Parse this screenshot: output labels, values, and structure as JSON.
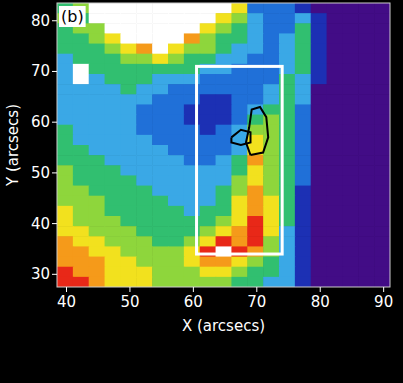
{
  "chart_data": {
    "type": "heatmap",
    "panel_label": "(b)",
    "xlabel": "X (arcsecs)",
    "ylabel": "Y (arcsecs)",
    "xlim": [
      38.5,
      91
    ],
    "ylim": [
      27.5,
      83.5
    ],
    "xticks": [
      40,
      50,
      60,
      70,
      80,
      90
    ],
    "yticks": [
      30,
      40,
      50,
      60,
      70,
      80
    ],
    "x_edges": [
      38.5,
      41,
      43.5,
      46,
      48.5,
      51,
      53.5,
      56,
      58.5,
      61,
      63.5,
      66,
      68.5,
      71,
      73.5,
      76,
      78.5,
      81,
      83.5,
      86,
      88.5,
      91
    ],
    "y_edges": [
      83.5,
      81.5,
      79.5,
      77.5,
      75.5,
      73.5,
      71.5,
      69.5,
      67.5,
      65.5,
      63.5,
      61.5,
      59.5,
      57.5,
      55.5,
      53.5,
      51.5,
      49.5,
      47.5,
      45.5,
      43.5,
      41.5,
      39.5,
      37.5,
      35.5,
      33.5,
      31.5,
      29.5,
      27.5
    ],
    "zlim": [
      0,
      9
    ],
    "cells": [
      [
        4,
        5,
        9,
        9,
        9,
        9,
        9,
        9,
        9,
        9,
        9,
        6,
        2,
        2,
        2,
        1,
        0,
        0,
        0,
        0,
        0
      ],
      [
        5,
        4,
        9,
        9,
        9,
        9,
        9,
        9,
        9,
        9,
        6,
        5,
        3,
        2,
        2,
        3,
        1,
        0,
        0,
        0,
        0
      ],
      [
        4,
        5,
        5,
        9,
        9,
        9,
        9,
        9,
        9,
        6,
        5,
        4,
        3,
        2,
        2,
        4,
        1,
        0,
        0,
        0,
        0
      ],
      [
        4,
        4,
        5,
        6,
        9,
        9,
        9,
        9,
        7,
        5,
        4,
        4,
        3,
        2,
        3,
        4,
        1,
        0,
        0,
        0,
        0
      ],
      [
        4,
        4,
        4,
        5,
        6,
        7,
        9,
        6,
        5,
        5,
        4,
        3,
        3,
        2,
        3,
        4,
        1,
        0,
        0,
        0,
        0
      ],
      [
        3,
        4,
        4,
        4,
        5,
        5,
        6,
        5,
        4,
        4,
        3,
        3,
        2,
        2,
        3,
        4,
        1,
        0,
        0,
        0,
        0
      ],
      [
        3,
        9,
        4,
        4,
        4,
        4,
        4,
        4,
        4,
        3,
        3,
        2,
        2,
        2,
        3,
        4,
        1,
        0,
        0,
        0,
        0
      ],
      [
        3,
        9,
        3,
        4,
        4,
        4,
        3,
        3,
        3,
        2,
        2,
        2,
        2,
        2,
        4,
        3,
        1,
        0,
        0,
        0,
        0
      ],
      [
        3,
        3,
        3,
        3,
        4,
        3,
        3,
        2,
        2,
        2,
        2,
        2,
        2,
        3,
        4,
        3,
        0,
        0,
        0,
        0,
        0
      ],
      [
        3,
        3,
        3,
        3,
        3,
        3,
        2,
        2,
        2,
        1,
        1,
        2,
        2,
        3,
        4,
        3,
        0,
        0,
        0,
        0,
        0
      ],
      [
        3,
        3,
        3,
        3,
        3,
        2,
        2,
        2,
        1,
        1,
        1,
        2,
        3,
        4,
        4,
        2,
        0,
        0,
        0,
        0,
        0
      ],
      [
        3,
        3,
        3,
        3,
        3,
        2,
        2,
        2,
        1,
        1,
        1,
        2,
        4,
        5,
        4,
        2,
        0,
        0,
        0,
        0,
        0
      ],
      [
        4,
        3,
        3,
        3,
        3,
        2,
        2,
        2,
        2,
        1,
        2,
        3,
        5,
        5,
        4,
        2,
        0,
        0,
        0,
        0,
        0
      ],
      [
        4,
        3,
        3,
        3,
        3,
        3,
        2,
        2,
        2,
        2,
        2,
        3,
        6,
        5,
        4,
        2,
        0,
        0,
        0,
        0,
        0
      ],
      [
        4,
        4,
        3,
        3,
        3,
        3,
        3,
        2,
        2,
        2,
        2,
        3,
        6,
        5,
        4,
        2,
        0,
        0,
        0,
        0,
        0
      ],
      [
        4,
        4,
        4,
        3,
        3,
        3,
        3,
        3,
        2,
        2,
        3,
        4,
        7,
        5,
        4,
        2,
        0,
        0,
        0,
        0,
        0
      ],
      [
        5,
        4,
        4,
        4,
        3,
        3,
        3,
        3,
        3,
        3,
        3,
        4,
        6,
        5,
        4,
        2,
        0,
        0,
        0,
        0,
        0
      ],
      [
        5,
        4,
        4,
        4,
        4,
        3,
        3,
        3,
        3,
        3,
        3,
        5,
        6,
        5,
        4,
        2,
        0,
        0,
        0,
        0,
        0
      ],
      [
        5,
        5,
        4,
        4,
        4,
        4,
        3,
        3,
        3,
        3,
        4,
        5,
        7,
        5,
        4,
        1,
        0,
        0,
        0,
        0,
        0
      ],
      [
        5,
        5,
        5,
        4,
        4,
        4,
        4,
        3,
        3,
        3,
        4,
        6,
        7,
        6,
        4,
        1,
        0,
        0,
        0,
        0,
        0
      ],
      [
        6,
        5,
        5,
        4,
        4,
        4,
        4,
        4,
        3,
        4,
        4,
        6,
        7,
        6,
        4,
        1,
        0,
        0,
        0,
        0,
        0
      ],
      [
        6,
        5,
        5,
        5,
        4,
        4,
        4,
        4,
        4,
        4,
        5,
        6,
        8,
        6,
        4,
        1,
        0,
        0,
        0,
        0,
        0
      ],
      [
        6,
        6,
        5,
        5,
        5,
        4,
        4,
        4,
        4,
        5,
        6,
        7,
        8,
        6,
        3,
        1,
        0,
        0,
        0,
        0,
        0
      ],
      [
        7,
        6,
        6,
        5,
        5,
        5,
        4,
        4,
        5,
        6,
        8,
        7,
        8,
        5,
        3,
        1,
        0,
        0,
        0,
        0,
        0
      ],
      [
        7,
        7,
        6,
        6,
        5,
        5,
        5,
        5,
        6,
        8,
        9,
        8,
        7,
        5,
        3,
        1,
        0,
        0,
        0,
        0,
        0
      ],
      [
        7,
        7,
        7,
        6,
        6,
        5,
        5,
        5,
        6,
        7,
        7,
        6,
        5,
        4,
        3,
        1,
        0,
        0,
        0,
        0,
        0
      ],
      [
        8,
        7,
        7,
        6,
        6,
        6,
        5,
        5,
        5,
        6,
        6,
        5,
        4,
        4,
        3,
        1,
        0,
        0,
        0,
        0,
        0
      ],
      [
        8,
        8,
        7,
        6,
        6,
        6,
        5,
        5,
        5,
        5,
        5,
        4,
        4,
        3,
        3,
        1,
        0,
        0,
        0,
        0,
        0
      ]
    ],
    "box": {
      "x": [
        60.5,
        74
      ],
      "y": [
        34,
        71
      ]
    },
    "contours": [
      [
        [
          69,
          53.5
        ],
        [
          71,
          54
        ],
        [
          71.8,
          57
        ],
        [
          71.5,
          61
        ],
        [
          70.5,
          63
        ],
        [
          69.2,
          62.5
        ],
        [
          68.8,
          59
        ],
        [
          68.3,
          56
        ],
        [
          69,
          53.5
        ]
      ],
      [
        [
          66,
          57
        ],
        [
          67.5,
          58.5
        ],
        [
          69,
          58
        ],
        [
          69,
          56
        ],
        [
          67.5,
          55.5
        ],
        [
          66,
          56
        ],
        [
          66,
          57
        ]
      ]
    ]
  }
}
